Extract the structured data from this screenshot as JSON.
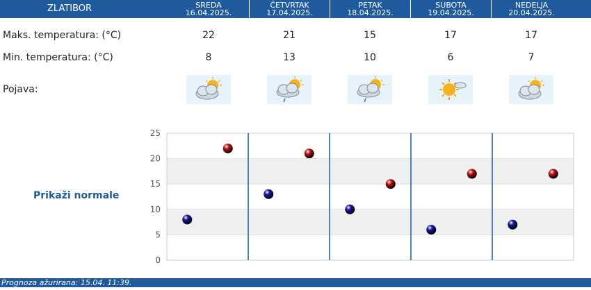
{
  "header": {
    "station": "ZLATIBOR",
    "days": [
      {
        "name": "SREDA",
        "date": "16.04.2025."
      },
      {
        "name": "ČETVRTAK",
        "date": "17.04.2025."
      },
      {
        "name": "PETAK",
        "date": "18.04.2025."
      },
      {
        "name": "SUBOTA",
        "date": "19.04.2025."
      },
      {
        "name": "NEDELJA",
        "date": "20.04.2025."
      }
    ]
  },
  "rows": {
    "max_label": "Maks. temperatura: (°C)",
    "max_values": [
      "22",
      "21",
      "15",
      "17",
      "17"
    ],
    "min_label": "Min. temperatura: (°C)",
    "min_values": [
      "8",
      "13",
      "10",
      "6",
      "7"
    ],
    "pojava_label": "Pojava:",
    "pojava_icons": [
      "partly-cloudy-icon",
      "partly-cloudy-rain-icon",
      "partly-cloudy-rain-icon",
      "mostly-sunny-icon",
      "partly-cloudy-icon"
    ]
  },
  "normals_link": "Prikaži normale",
  "chart_data": {
    "type": "scatter",
    "categories": [
      "16.04.2025.",
      "17.04.2025.",
      "18.04.2025.",
      "19.04.2025.",
      "20.04.2025."
    ],
    "series": [
      {
        "values": [
          8,
          13,
          10,
          6,
          7
        ],
        "color": "#1a1aa6"
      },
      {
        "values": [
          22,
          21,
          15,
          17,
          17
        ],
        "color": "#c81414"
      }
    ],
    "ylim": [
      0,
      25
    ],
    "yticks": [
      "0",
      "5",
      "10",
      "15",
      "20",
      "25"
    ],
    "grid": true,
    "band_color": "#f0f0f0",
    "divider_color": "#1f5a9c"
  },
  "footer": "Prognoza ažurirana:  15.04. 11:39."
}
